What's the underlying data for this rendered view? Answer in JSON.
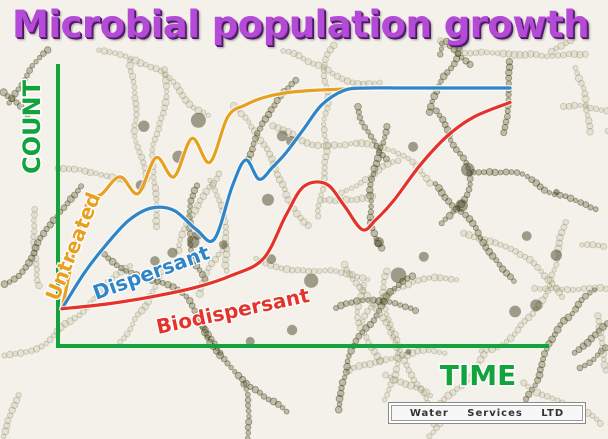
{
  "title": "Microbial population growth",
  "logo_text": "Water Services LTD",
  "chart_data": {
    "type": "line",
    "xlabel": "TIME",
    "ylabel": "COUNT",
    "xlim": [
      0,
      100
    ],
    "ylim": [
      0,
      100
    ],
    "grid": false,
    "series": [
      {
        "name": "Untreated",
        "color": "#e8a021",
        "x": [
          0,
          5,
          9,
          13,
          17,
          21,
          25,
          29,
          33,
          37,
          41,
          45,
          50,
          56,
          62,
          70,
          80,
          90,
          100
        ],
        "y": [
          3,
          44,
          51,
          58,
          51,
          66,
          58,
          74,
          64,
          83,
          88,
          91,
          93,
          94,
          94.5,
          95,
          95,
          95,
          95
        ]
      },
      {
        "name": "Dispersant",
        "color": "#2e86c8",
        "x": [
          0,
          5,
          10,
          15,
          20,
          25,
          30,
          34,
          38,
          41,
          44,
          47,
          50,
          54,
          58,
          63,
          68,
          76,
          88,
          100
        ],
        "y": [
          3,
          18,
          30,
          40,
          45,
          44,
          36,
          32,
          54,
          65,
          57,
          62,
          68,
          78,
          88,
          94,
          95,
          95,
          95,
          95
        ]
      },
      {
        "name": "Biodispersant",
        "color": "#e4332b",
        "x": [
          0,
          10,
          20,
          30,
          38,
          45,
          50,
          54,
          59,
          63,
          67,
          70,
          74,
          80,
          86,
          92,
          100
        ],
        "y": [
          3,
          5,
          8,
          12,
          17,
          24,
          42,
          54,
          55,
          46,
          36,
          40,
          48,
          63,
          75,
          83,
          89
        ]
      }
    ],
    "axis_color": "#13a33d",
    "title_color": "#b34bd6"
  }
}
